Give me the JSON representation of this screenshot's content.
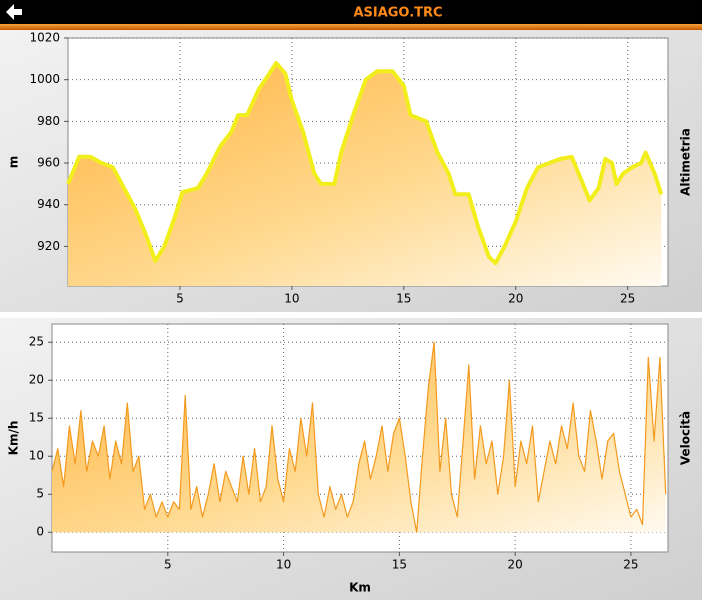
{
  "header": {
    "title": "ASIAGO.TRC"
  },
  "chart_data": [
    {
      "type": "area",
      "title": "Altimetria",
      "y_label": "m",
      "x": [
        0,
        0.5,
        1.0,
        1.5,
        2.0,
        2.5,
        3.0,
        3.5,
        3.9,
        4.3,
        4.8,
        5.1,
        5.8,
        6.2,
        6.8,
        7.3,
        7.6,
        8.0,
        8.5,
        9.0,
        9.3,
        9.7,
        10.0,
        10.5,
        11.0,
        11.3,
        11.9,
        12.2,
        12.8,
        13.3,
        13.8,
        14.5,
        15.0,
        15.3,
        16.0,
        16.5,
        17.0,
        17.3,
        17.9,
        18.3,
        18.8,
        19.1,
        19.5,
        20.0,
        20.5,
        21.0,
        21.5,
        22.0,
        22.5,
        23.0,
        23.3,
        23.7,
        24.0,
        24.3,
        24.5,
        24.8,
        25.2,
        25.6,
        25.8,
        26.2,
        26.5
      ],
      "series": [
        {
          "name": "Altimetria",
          "color": "#f2ee1c",
          "values": [
            950,
            963,
            963,
            960,
            958,
            948,
            938,
            925,
            913,
            920,
            935,
            946,
            948,
            955,
            968,
            975,
            983,
            983,
            995,
            1003,
            1008,
            1003,
            990,
            975,
            955,
            950,
            950,
            965,
            985,
            1000,
            1004,
            1004,
            997,
            983,
            980,
            965,
            955,
            945,
            945,
            930,
            915,
            912,
            920,
            932,
            948,
            958,
            960,
            962,
            963,
            950,
            942,
            948,
            962,
            960,
            950,
            955,
            958,
            960,
            965,
            955,
            945
          ]
        }
      ],
      "xlim": [
        0,
        26.8
      ],
      "ylim": [
        901,
        1020
      ],
      "xticks": [
        5,
        10,
        15,
        20,
        25
      ],
      "yticks": [
        920,
        940,
        960,
        980,
        1000,
        1020
      ],
      "grid": true
    },
    {
      "type": "area",
      "title": "Velocità",
      "y_label": "Km/h",
      "x_label": "Km",
      "x": [
        0,
        0.25,
        0.5,
        0.75,
        1,
        1.25,
        1.5,
        1.75,
        2,
        2.25,
        2.5,
        2.75,
        3,
        3.25,
        3.5,
        3.75,
        4,
        4.25,
        4.5,
        4.75,
        5,
        5.25,
        5.5,
        5.75,
        6,
        6.25,
        6.5,
        6.75,
        7,
        7.25,
        7.5,
        7.75,
        8,
        8.25,
        8.5,
        8.75,
        9,
        9.25,
        9.5,
        9.75,
        10,
        10.25,
        10.5,
        10.75,
        11,
        11.25,
        11.5,
        11.75,
        12,
        12.25,
        12.5,
        12.75,
        13,
        13.25,
        13.5,
        13.75,
        14,
        14.25,
        14.5,
        14.75,
        15,
        15.25,
        15.5,
        15.75,
        16,
        16.25,
        16.5,
        16.75,
        17,
        17.25,
        17.5,
        17.75,
        18,
        18.25,
        18.5,
        18.75,
        19,
        19.25,
        19.5,
        19.75,
        20,
        20.25,
        20.5,
        20.75,
        21,
        21.25,
        21.5,
        21.75,
        22,
        22.25,
        22.5,
        22.75,
        23,
        23.25,
        23.5,
        23.75,
        24,
        24.25,
        24.5,
        24.75,
        25,
        25.25,
        25.5,
        25.75,
        26,
        26.25,
        26.5
      ],
      "series": [
        {
          "name": "Velocità",
          "color": "#f39a1e",
          "values": [
            8,
            11,
            6,
            14,
            9,
            16,
            8,
            12,
            10,
            14,
            7,
            12,
            9,
            17,
            8,
            10,
            3,
            5,
            2,
            4,
            2,
            4,
            3,
            18,
            3,
            6,
            2,
            5,
            9,
            4,
            8,
            6,
            4,
            10,
            5,
            11,
            4,
            6,
            14,
            7,
            4,
            11,
            8,
            15,
            10,
            17,
            5,
            2,
            6,
            3,
            5,
            2,
            4,
            9,
            12,
            7,
            10,
            14,
            8,
            13,
            15,
            10,
            4,
            0,
            10,
            19,
            25,
            8,
            15,
            5,
            2,
            12,
            22,
            7,
            14,
            9,
            12,
            5,
            10,
            20,
            6,
            12,
            9,
            14,
            4,
            8,
            12,
            9,
            14,
            11,
            17,
            10,
            8,
            16,
            12,
            7,
            12,
            13,
            8,
            5,
            2,
            3,
            1,
            23,
            12,
            23,
            5
          ]
        }
      ],
      "xlim": [
        0,
        26.6
      ],
      "ylim": [
        -2.6,
        27.4
      ],
      "xticks": [
        5,
        10,
        15,
        20,
        25
      ],
      "yticks": [
        0,
        5,
        10,
        15,
        20,
        25
      ],
      "grid": true
    }
  ]
}
